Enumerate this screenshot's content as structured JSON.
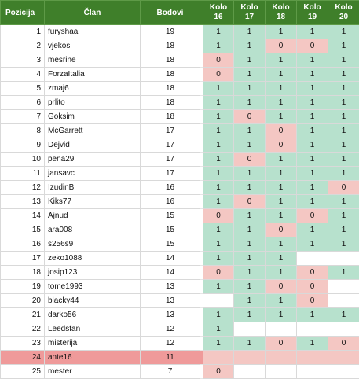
{
  "headers": {
    "pozicija": "Pozicija",
    "clan": "Član",
    "bodovi": "Bodovi",
    "kolo_label": "Kolo",
    "rounds": [
      "16",
      "17",
      "18",
      "19",
      "20"
    ]
  },
  "colors": {
    "header_green": "#3f7f2a",
    "cell_green": "#b7e1cd",
    "cell_red": "#f4c7c3",
    "highlight_row": "#ef9a9a"
  },
  "rows": [
    {
      "pos": "1",
      "name": "furyshaa",
      "pts": "19",
      "r": [
        "1",
        "1",
        "1",
        "1",
        "1"
      ]
    },
    {
      "pos": "2",
      "name": "vjekos",
      "pts": "18",
      "r": [
        "1",
        "1",
        "0",
        "0",
        "1"
      ]
    },
    {
      "pos": "3",
      "name": "mesrine",
      "pts": "18",
      "r": [
        "0",
        "1",
        "1",
        "1",
        "1"
      ]
    },
    {
      "pos": "4",
      "name": "ForzaItalia",
      "pts": "18",
      "r": [
        "0",
        "1",
        "1",
        "1",
        "1"
      ]
    },
    {
      "pos": "5",
      "name": "zmaj6",
      "pts": "18",
      "r": [
        "1",
        "1",
        "1",
        "1",
        "1"
      ]
    },
    {
      "pos": "6",
      "name": "prlito",
      "pts": "18",
      "r": [
        "1",
        "1",
        "1",
        "1",
        "1"
      ]
    },
    {
      "pos": "7",
      "name": "Goksim",
      "pts": "18",
      "r": [
        "1",
        "0",
        "1",
        "1",
        "1"
      ]
    },
    {
      "pos": "8",
      "name": "McGarrett",
      "pts": "17",
      "r": [
        "1",
        "1",
        "0",
        "1",
        "1"
      ]
    },
    {
      "pos": "9",
      "name": "Dejvid",
      "pts": "17",
      "r": [
        "1",
        "1",
        "0",
        "1",
        "1"
      ]
    },
    {
      "pos": "10",
      "name": "pena29",
      "pts": "17",
      "r": [
        "1",
        "0",
        "1",
        "1",
        "1"
      ]
    },
    {
      "pos": "11",
      "name": "jansavc",
      "pts": "17",
      "r": [
        "1",
        "1",
        "1",
        "1",
        "1"
      ]
    },
    {
      "pos": "12",
      "name": "IzudinB",
      "pts": "16",
      "r": [
        "1",
        "1",
        "1",
        "1",
        "0"
      ]
    },
    {
      "pos": "13",
      "name": "Kiks77",
      "pts": "16",
      "r": [
        "1",
        "0",
        "1",
        "1",
        "1"
      ]
    },
    {
      "pos": "14",
      "name": "Ajnud",
      "pts": "15",
      "r": [
        "0",
        "1",
        "1",
        "0",
        "1"
      ]
    },
    {
      "pos": "15",
      "name": "ara008",
      "pts": "15",
      "r": [
        "1",
        "1",
        "0",
        "1",
        "1"
      ]
    },
    {
      "pos": "16",
      "name": "s256s9",
      "pts": "15",
      "r": [
        "1",
        "1",
        "1",
        "1",
        "1"
      ]
    },
    {
      "pos": "17",
      "name": "zeko1088",
      "pts": "14",
      "r": [
        "1",
        "1",
        "1",
        "",
        ""
      ]
    },
    {
      "pos": "18",
      "name": "josip123",
      "pts": "14",
      "r": [
        "0",
        "1",
        "1",
        "0",
        "1"
      ]
    },
    {
      "pos": "19",
      "name": "tome1993",
      "pts": "13",
      "r": [
        "1",
        "1",
        "0",
        "0",
        ""
      ]
    },
    {
      "pos": "20",
      "name": "blacky44",
      "pts": "13",
      "r": [
        "",
        "1",
        "1",
        "0",
        ""
      ]
    },
    {
      "pos": "21",
      "name": "darko56",
      "pts": "13",
      "r": [
        "1",
        "1",
        "1",
        "1",
        "1"
      ]
    },
    {
      "pos": "22",
      "name": "Leedsfan",
      "pts": "12",
      "r": [
        "1",
        "",
        "",
        "",
        ""
      ]
    },
    {
      "pos": "23",
      "name": "misterija",
      "pts": "12",
      "r": [
        "1",
        "1",
        "0",
        "1",
        "0"
      ]
    },
    {
      "pos": "24",
      "name": "ante16",
      "pts": "11",
      "r": [
        "",
        "",
        "",
        "",
        ""
      ],
      "highlight": true
    },
    {
      "pos": "25",
      "name": "mester",
      "pts": "7",
      "r": [
        "0",
        "",
        "",
        "",
        ""
      ]
    }
  ]
}
